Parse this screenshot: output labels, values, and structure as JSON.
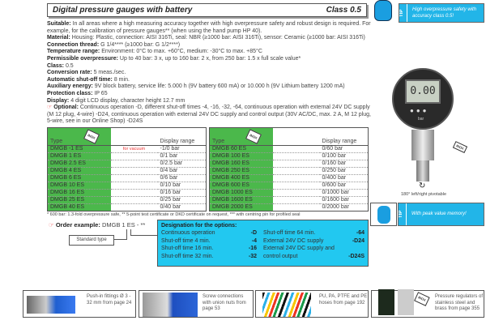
{
  "header": {
    "title": "Digital pressure gauges with battery",
    "class_label": "Class 0.5"
  },
  "tip_top": {
    "tag": "TIP",
    "text": "High overpressure safety with accuracy class 0.5!"
  },
  "tip_bottom": {
    "tag": "TIP",
    "text": "With peak value memory!"
  },
  "specs": [
    {
      "k": "Suitable:",
      "v": "In all areas where a high measuring accuracy together with high overpressure safety and robust design is required. For example, for the calibration of pressure gauges** (when using the hand pump HP 40)."
    },
    {
      "k": "Material:",
      "v": "Housing: Plastic, connection: AISI 316Ti, seal: NBR (≥1000 bar: AISI 316Ti), sensor: Ceramic (≥1000 bar: AISI 316Ti)"
    },
    {
      "k": "Connection thread:",
      "v": "G 1/4**** (≥1000 bar: G 1/2****)"
    },
    {
      "k": "Temperature range:",
      "v": "Environment: 0°C to max. +60°C, medium: -30°C to max. +85°C"
    },
    {
      "k": "Permissible overpressure:",
      "v": "Up to 40 bar: 3 x, up to 160 bar: 2 x, from 250 bar: 1.5 x full scale value*"
    },
    {
      "k": "Class:",
      "v": "0.5"
    },
    {
      "k": "Conversion rate:",
      "v": "5 meas./sec."
    },
    {
      "k": "Automatic shut-off time:",
      "v": "8 min."
    },
    {
      "k": "Auxiliary energy:",
      "v": "9V block battery, service life: 5.000 h (9V battery 600 mA) or 10.000 h (9V Lithium battery 1200 mA)"
    },
    {
      "k": "Protection class:",
      "v": "IP 65"
    },
    {
      "k": "Display:",
      "v": "4 digit LCD display, character height 12.7 mm"
    }
  ],
  "optional": {
    "k": "Optional:",
    "v": "Continuous operation -D, different shut-off times -4, -16, -32, -64, continuous operation with external 24V DC supply (M 12 plug, 4-wire) -D24, continuous operation with external 24V DC supply and control output (30V AC/DC, max. 2 A, M 12 plug, 5-wire, see in our Online Shop) -D24S"
  },
  "table": {
    "col_type": "Type",
    "col_range": "Display range",
    "inox": "INOX",
    "left": [
      [
        "DMGB -1 ES",
        "for vacuum",
        "-1/0 bar"
      ],
      [
        "DMGB 1 ES",
        "",
        "0/1 bar"
      ],
      [
        "DMGB 2.5 ES",
        "",
        "0/2.5 bar"
      ],
      [
        "DMGB 4 ES",
        "",
        "0/4 bar"
      ],
      [
        "DMGB 6 ES",
        "",
        "0/6 bar"
      ],
      [
        "DMGB 10 ES",
        "",
        "0/10 bar"
      ],
      [
        "DMGB 16 ES",
        "",
        "0/16 bar"
      ],
      [
        "DMGB 25 ES",
        "",
        "0/25 bar"
      ],
      [
        "DMGB 40 ES",
        "",
        "0/40 bar"
      ]
    ],
    "right": [
      [
        "DMGB 60 ES",
        "",
        "0/60 bar"
      ],
      [
        "DMGB 100 ES",
        "",
        "0/100 bar"
      ],
      [
        "DMGB 160 ES",
        "",
        "0/160 bar"
      ],
      [
        "DMGB 250 ES",
        "",
        "0/250 bar"
      ],
      [
        "DMGB 400 ES",
        "",
        "0/400 bar"
      ],
      [
        "DMGB 600 ES",
        "",
        "0/600 bar"
      ],
      [
        "DMGB 1000 ES",
        "",
        "0/1000 bar"
      ],
      [
        "DMGB 1600 ES",
        "",
        "0/1600 bar"
      ],
      [
        "DMGB 2000 ES",
        "",
        "0/2000 bar"
      ]
    ]
  },
  "gauge": {
    "display": "0.00",
    "unit": "bar",
    "inox": "INOX",
    "rotate_note": "180° left/right pivotable"
  },
  "footnote": "* 600 bar: 1.3-fold overpressure safe, ** 5-point test certificate or DKD certificate on request, *** with centring pin for profiled seal",
  "order": {
    "label": "Order example:",
    "value": "DMGB 1 ES - **",
    "standard": "Standard type"
  },
  "designation": {
    "title": "Designation for the options:",
    "items": [
      [
        "Continuous operation",
        "-D"
      ],
      [
        "Shut-off time 4 min.",
        "-4"
      ],
      [
        "Shut-off time 16 min.",
        "-16"
      ],
      [
        "Shut-off time 32 min.",
        "-32"
      ],
      [
        "Shut-off time 64 min.",
        "-64"
      ],
      [
        "External 24V DC supply",
        "-D24"
      ],
      [
        "External 24V DC supply and control output",
        "-D24S"
      ]
    ]
  },
  "related": [
    {
      "text": "Push-in fittings Ø 3 - 32 mm from page 24"
    },
    {
      "text": "Screw connections with union nuts from page 53"
    },
    {
      "text": "PU, PA, PTFE and PE hoses from page 192"
    },
    {
      "text": "Pressure regulators of stainless steel and brass from page 355",
      "inox": "INOX"
    }
  ]
}
